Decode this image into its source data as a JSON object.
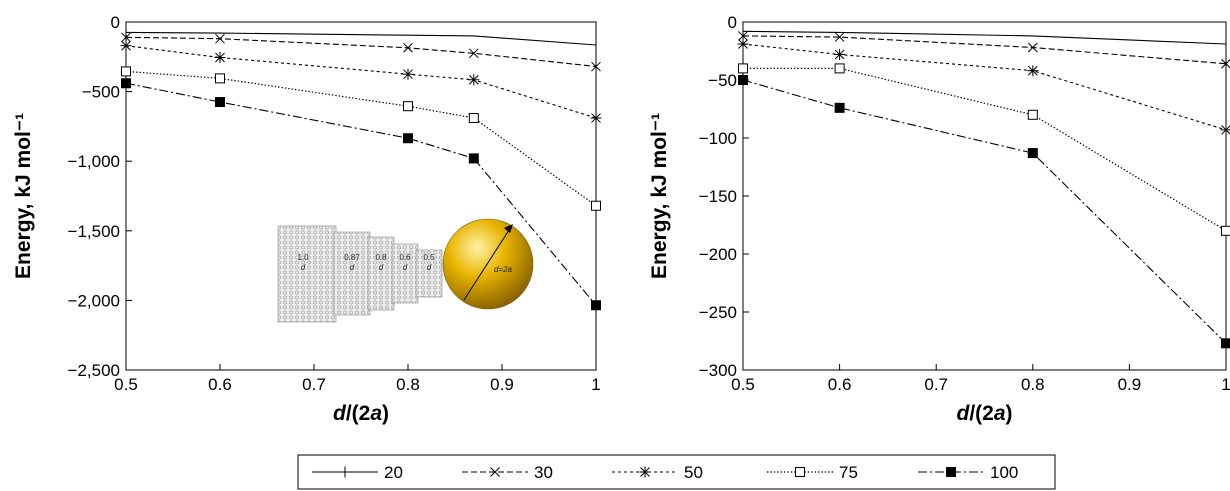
{
  "chart_data": [
    {
      "type": "line",
      "xlabel_prefix": "d",
      "xlabel_middle": "/(2",
      "xlabel_var": "a",
      "xlabel_suffix": ")",
      "ylabel": "Energy, kJ mol⁻¹",
      "xlim": [
        0.5,
        1.0
      ],
      "ylim": [
        -2500,
        0
      ],
      "xticks": [
        0.5,
        0.6,
        0.7,
        0.8,
        0.9,
        1.0
      ],
      "xtick_labels": [
        "0.5",
        "0.6",
        "0.7",
        "0.8",
        "0.9",
        "1"
      ],
      "yticks": [
        0,
        -500,
        -1000,
        -1500,
        -2000,
        -2500
      ],
      "ytick_labels": [
        "0",
        "−500",
        "−1,000",
        "−1,500",
        "−2,000",
        "−2,500"
      ],
      "grid": false,
      "series": [
        {
          "name": "20",
          "x": [
            0.5,
            0.6,
            0.8,
            0.87,
            1.0
          ],
          "y": [
            -75,
            -80,
            -95,
            -100,
            -165
          ]
        },
        {
          "name": "30",
          "x": [
            0.5,
            0.6,
            0.8,
            0.87,
            1.0
          ],
          "y": [
            -110,
            -120,
            -185,
            -225,
            -320
          ]
        },
        {
          "name": "50",
          "x": [
            0.5,
            0.6,
            0.8,
            0.87,
            1.0
          ],
          "y": [
            -170,
            -255,
            -375,
            -415,
            -690
          ]
        },
        {
          "name": "75",
          "x": [
            0.5,
            0.6,
            0.8,
            0.87,
            1.0
          ],
          "y": [
            -355,
            -405,
            -605,
            -690,
            -1320
          ]
        },
        {
          "name": "100",
          "x": [
            0.5,
            0.6,
            0.8,
            0.87,
            1.0
          ],
          "y": [
            -440,
            -575,
            -835,
            -980,
            -2035
          ]
        }
      ],
      "inset": {
        "segment_labels": [
          {
            "value": "1.0",
            "var": "d"
          },
          {
            "value": "0.87",
            "var": "d"
          },
          {
            "value": "0.8",
            "var": "d"
          },
          {
            "value": "0.6",
            "var": "d"
          },
          {
            "value": "0.5",
            "var": "d"
          }
        ],
        "sphere_label": "d=2a",
        "sphere_color": "#e8b500"
      }
    },
    {
      "type": "line",
      "xlabel_prefix": "d",
      "xlabel_middle": "/(2",
      "xlabel_var": "a",
      "xlabel_suffix": ")",
      "ylabel": "Energy, kJ mol⁻¹",
      "xlim": [
        0.5,
        1.0
      ],
      "ylim": [
        -300,
        0
      ],
      "xticks": [
        0.5,
        0.6,
        0.7,
        0.8,
        0.9,
        1.0
      ],
      "xtick_labels": [
        "0.5",
        "0.6",
        "0.7",
        "0.8",
        "0.9",
        "1"
      ],
      "yticks": [
        0,
        -50,
        -100,
        -150,
        -200,
        -250,
        -300
      ],
      "ytick_labels": [
        "0",
        "−50",
        "−100",
        "−150",
        "−200",
        "−250",
        "−300"
      ],
      "grid": false,
      "series": [
        {
          "name": "20",
          "x": [
            0.5,
            0.6,
            0.8,
            1.0
          ],
          "y": [
            -8,
            -9,
            -12,
            -19
          ]
        },
        {
          "name": "30",
          "x": [
            0.5,
            0.6,
            0.8,
            1.0
          ],
          "y": [
            -12,
            -13,
            -22,
            -36
          ]
        },
        {
          "name": "50",
          "x": [
            0.5,
            0.6,
            0.8,
            1.0
          ],
          "y": [
            -19,
            -28,
            -42,
            -93
          ]
        },
        {
          "name": "75",
          "x": [
            0.5,
            0.6,
            0.8,
            1.0
          ],
          "y": [
            -40,
            -40,
            -80,
            -180
          ]
        },
        {
          "name": "100",
          "x": [
            0.5,
            0.6,
            0.8,
            1.0
          ],
          "y": [
            -50,
            -74,
            -113,
            -277
          ]
        }
      ]
    }
  ],
  "legend": {
    "placement": "bottom-center",
    "entries": [
      {
        "label": "20",
        "marker": "plus",
        "dash": "solid"
      },
      {
        "label": "30",
        "marker": "x",
        "dash": "dashed"
      },
      {
        "label": "50",
        "marker": "star",
        "dash": "dotted-short"
      },
      {
        "label": "75",
        "marker": "open-square",
        "dash": "dotted"
      },
      {
        "label": "100",
        "marker": "filled-square",
        "dash": "dash-dot"
      }
    ]
  }
}
